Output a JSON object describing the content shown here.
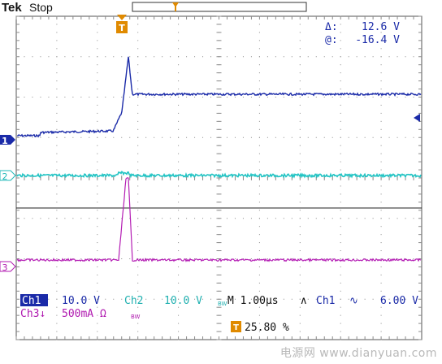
{
  "header": {
    "brand": "Tek",
    "run_state": "Stop"
  },
  "trigger_marker": {
    "label": "T"
  },
  "cursor_readout": {
    "delta_label": "Δ:",
    "delta_value": "12.6 V",
    "at_label": "@:",
    "at_value": "-16.4 V"
  },
  "channel_markers": [
    {
      "label": "1",
      "color": "#1a2aa8"
    },
    {
      "label": "2",
      "color": "#20b8b8"
    },
    {
      "label": "3",
      "color": "#b01ab0"
    }
  ],
  "status": {
    "ch1_label": "Ch1",
    "ch1_scale": "10.0 V",
    "ch2_label": "Ch2",
    "ch2_scale": "10.0 V",
    "bw_mark": "BW",
    "timebase": "M 1.00µs",
    "trig_source": "Ch1",
    "trig_symbol": "∿",
    "trig_level": "6.00 V",
    "ch3_label": "Ch3↓",
    "ch3_scale": "500mA Ω",
    "ch3_bw": "BW",
    "trig_pos_label": "T",
    "trig_pos_value": "25.80 %"
  },
  "watermark": "电源网 www.dianyuan.com",
  "colors": {
    "ch1": "#1a2aa8",
    "ch2": "#22c4c4",
    "ch3": "#b41eb4",
    "trigger": "#e08a00",
    "grid": "#888888"
  }
}
